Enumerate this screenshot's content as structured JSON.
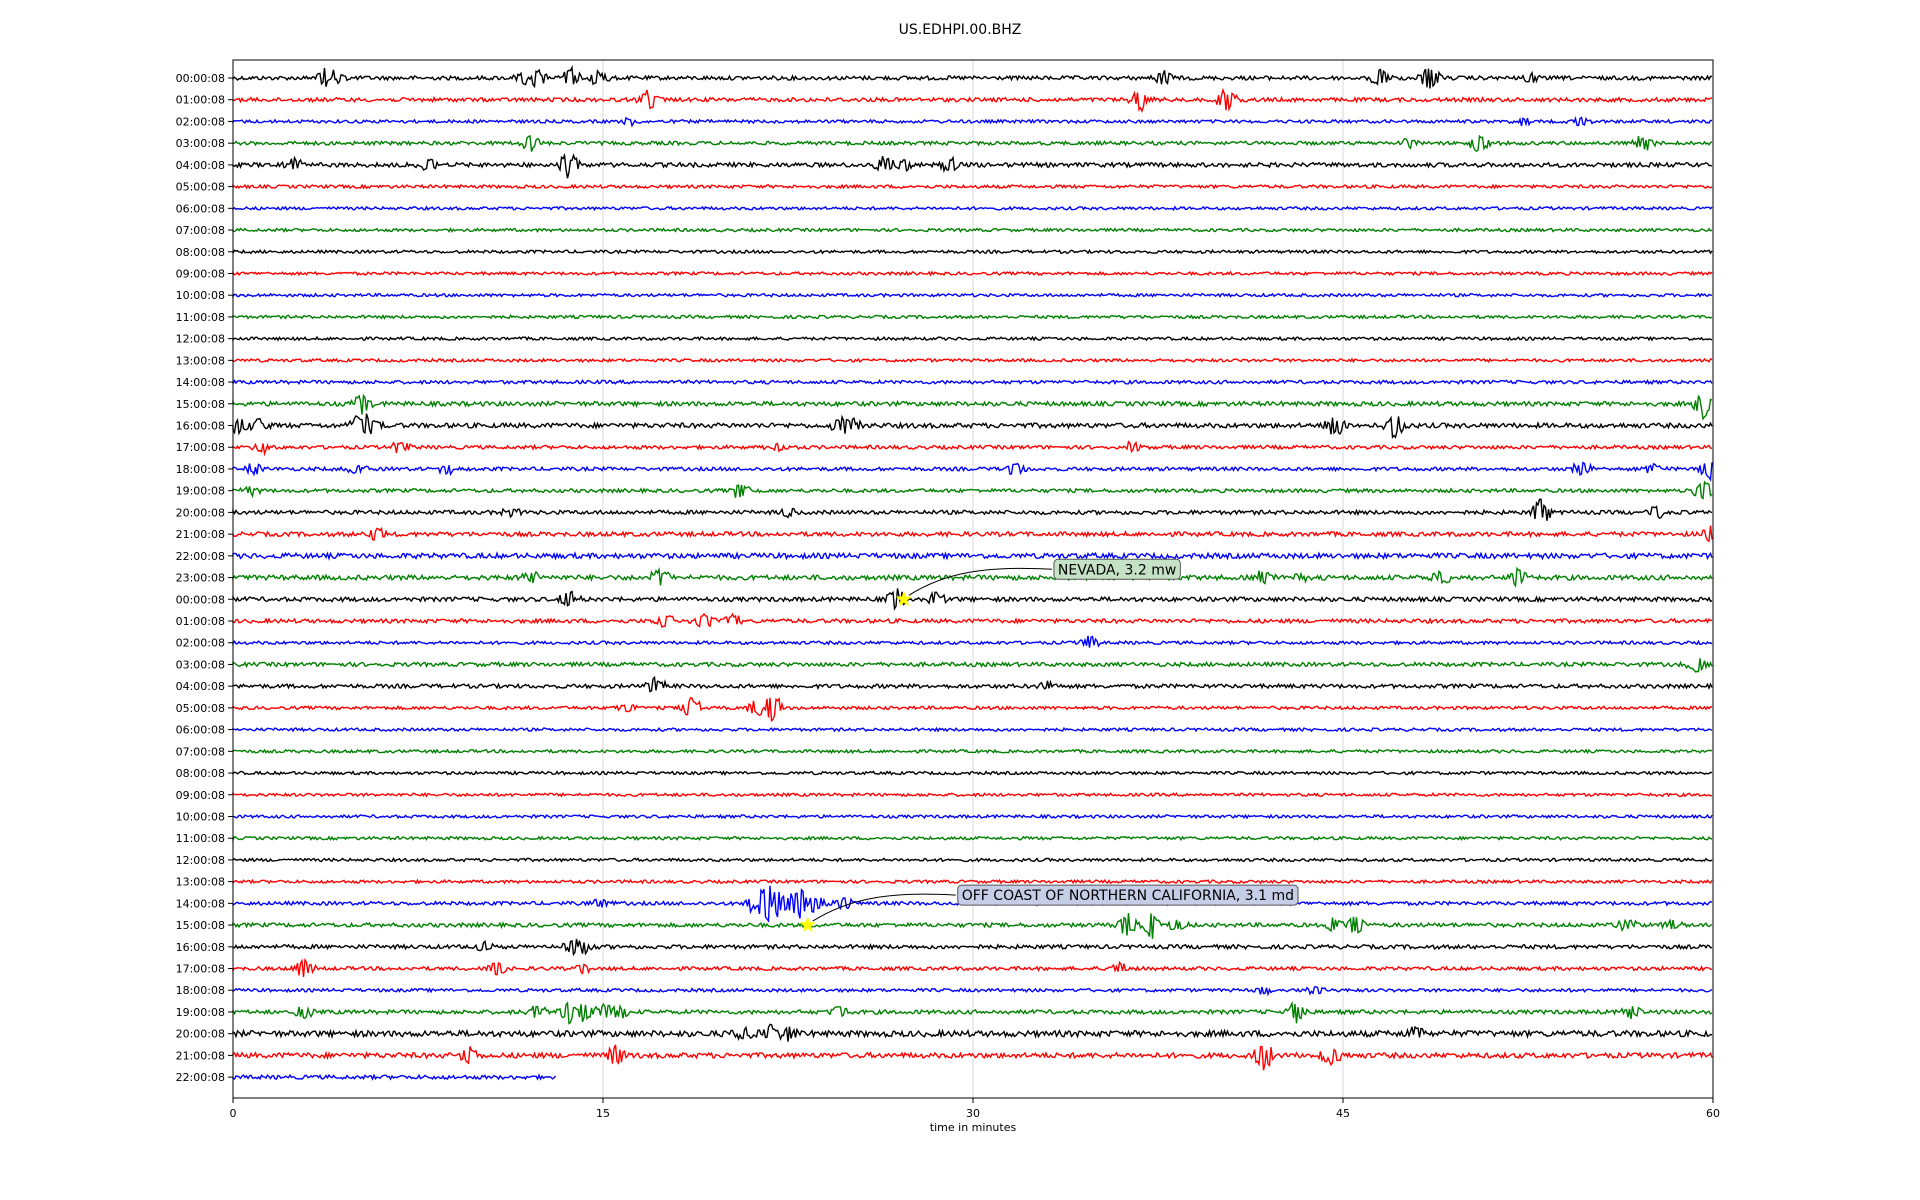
{
  "chart_data": {
    "type": "line",
    "title": "US.EDHPI.00.BHZ",
    "xlabel": "time in minutes",
    "ylabel": "",
    "xlim": [
      0,
      60
    ],
    "x_ticks": [
      "0",
      "15",
      "30",
      "45",
      "60"
    ],
    "grid": "vertical",
    "line_colors": [
      "#000000",
      "#ff0000",
      "#0000ff",
      "#008000"
    ],
    "star_color": "#ffff00",
    "trace_labels": [
      "00:00:08",
      "01:00:08",
      "02:00:08",
      "03:00:08",
      "04:00:08",
      "05:00:08",
      "06:00:08",
      "07:00:08",
      "08:00:08",
      "09:00:08",
      "10:00:08",
      "11:00:08",
      "12:00:08",
      "13:00:08",
      "14:00:08",
      "15:00:08",
      "16:00:08",
      "17:00:08",
      "18:00:08",
      "19:00:08",
      "20:00:08",
      "21:00:08",
      "22:00:08",
      "23:00:08",
      "00:00:08",
      "01:00:08",
      "02:00:08",
      "03:00:08",
      "04:00:08",
      "05:00:08",
      "06:00:08",
      "07:00:08",
      "08:00:08",
      "09:00:08",
      "10:00:08",
      "11:00:08",
      "12:00:08",
      "13:00:08",
      "14:00:08",
      "15:00:08",
      "16:00:08",
      "17:00:08",
      "18:00:08",
      "19:00:08",
      "20:00:08",
      "21:00:08",
      "22:00:08"
    ],
    "last_trace_end_minute": 13.1,
    "noise": [
      2.0,
      2.0,
      1.6,
      1.8,
      2.2,
      1.6,
      1.5,
      1.5,
      1.5,
      1.5,
      1.5,
      1.5,
      1.5,
      1.5,
      1.7,
      2.2,
      2.4,
      1.8,
      1.8,
      1.8,
      2.0,
      2.2,
      2.6,
      2.4,
      2.2,
      2.0,
      1.6,
      2.0,
      2.0,
      1.6,
      1.5,
      1.5,
      1.5,
      1.5,
      1.5,
      1.5,
      1.5,
      1.5,
      1.8,
      2.0,
      2.0,
      1.8,
      1.6,
      2.0,
      3.0,
      2.6,
      2.0
    ],
    "events": [
      {
        "trace": 0,
        "minute": 3.8,
        "amp": 9
      },
      {
        "trace": 0,
        "minute": 4.1,
        "amp": 8
      },
      {
        "trace": 0,
        "minute": 11.8,
        "amp": 7
      },
      {
        "trace": 0,
        "minute": 12.3,
        "amp": 8
      },
      {
        "trace": 0,
        "minute": 13.7,
        "amp": 10
      },
      {
        "trace": 0,
        "minute": 14.8,
        "amp": 8
      },
      {
        "trace": 0,
        "minute": 37.7,
        "amp": 8
      },
      {
        "trace": 0,
        "minute": 46.5,
        "amp": 11
      },
      {
        "trace": 0,
        "minute": 48.5,
        "amp": 13
      },
      {
        "trace": 0,
        "minute": 52.6,
        "amp": 6
      },
      {
        "trace": 1,
        "minute": 16.6,
        "amp": 8
      },
      {
        "trace": 1,
        "minute": 17.0,
        "amp": 7
      },
      {
        "trace": 1,
        "minute": 36.8,
        "amp": 11
      },
      {
        "trace": 1,
        "minute": 40.3,
        "amp": 13
      },
      {
        "trace": 2,
        "minute": 16.1,
        "amp": 4
      },
      {
        "trace": 2,
        "minute": 52.3,
        "amp": 4
      },
      {
        "trace": 2,
        "minute": 54.6,
        "amp": 5
      },
      {
        "trace": 3,
        "minute": 12.1,
        "amp": 10
      },
      {
        "trace": 3,
        "minute": 47.7,
        "amp": 6
      },
      {
        "trace": 3,
        "minute": 50.5,
        "amp": 10
      },
      {
        "trace": 3,
        "minute": 57.2,
        "amp": 9
      },
      {
        "trace": 4,
        "minute": 2.5,
        "amp": 7
      },
      {
        "trace": 4,
        "minute": 7.9,
        "amp": 7
      },
      {
        "trace": 4,
        "minute": 13.6,
        "amp": 14
      },
      {
        "trace": 4,
        "minute": 26.4,
        "amp": 9
      },
      {
        "trace": 4,
        "minute": 27.3,
        "amp": 7
      },
      {
        "trace": 4,
        "minute": 29.1,
        "amp": 8
      },
      {
        "trace": 15,
        "minute": 5.3,
        "amp": 11
      },
      {
        "trace": 15,
        "minute": 59.6,
        "amp": 14
      },
      {
        "trace": 16,
        "minute": 0.2,
        "amp": 9
      },
      {
        "trace": 16,
        "minute": 1.0,
        "amp": 7
      },
      {
        "trace": 16,
        "minute": 5.1,
        "amp": 11
      },
      {
        "trace": 16,
        "minute": 5.6,
        "amp": 8
      },
      {
        "trace": 16,
        "minute": 24.6,
        "amp": 9
      },
      {
        "trace": 16,
        "minute": 25.2,
        "amp": 7
      },
      {
        "trace": 16,
        "minute": 44.7,
        "amp": 13
      },
      {
        "trace": 16,
        "minute": 47.1,
        "amp": 12
      },
      {
        "trace": 17,
        "minute": 1.2,
        "amp": 6
      },
      {
        "trace": 17,
        "minute": 6.8,
        "amp": 7
      },
      {
        "trace": 17,
        "minute": 22.0,
        "amp": 5
      },
      {
        "trace": 17,
        "minute": 36.4,
        "amp": 5
      },
      {
        "trace": 18,
        "minute": 0.8,
        "amp": 6
      },
      {
        "trace": 18,
        "minute": 5.0,
        "amp": 5
      },
      {
        "trace": 18,
        "minute": 8.7,
        "amp": 5
      },
      {
        "trace": 18,
        "minute": 31.7,
        "amp": 7
      },
      {
        "trace": 18,
        "minute": 54.7,
        "amp": 8
      },
      {
        "trace": 18,
        "minute": 57.6,
        "amp": 6
      },
      {
        "trace": 18,
        "minute": 59.9,
        "amp": 14
      },
      {
        "trace": 19,
        "minute": 0.7,
        "amp": 7
      },
      {
        "trace": 19,
        "minute": 20.6,
        "amp": 9
      },
      {
        "trace": 19,
        "minute": 59.6,
        "amp": 12
      },
      {
        "trace": 20,
        "minute": 11.3,
        "amp": 5
      },
      {
        "trace": 20,
        "minute": 22.5,
        "amp": 4
      },
      {
        "trace": 20,
        "minute": 53.0,
        "amp": 14
      },
      {
        "trace": 20,
        "minute": 57.7,
        "amp": 7
      },
      {
        "trace": 21,
        "minute": 5.8,
        "amp": 7
      },
      {
        "trace": 21,
        "minute": 59.9,
        "amp": 10
      },
      {
        "trace": 23,
        "minute": 12.1,
        "amp": 6
      },
      {
        "trace": 23,
        "minute": 17.3,
        "amp": 9
      },
      {
        "trace": 23,
        "minute": 41.8,
        "amp": 8
      },
      {
        "trace": 23,
        "minute": 43.2,
        "amp": 5
      },
      {
        "trace": 23,
        "minute": 49.0,
        "amp": 7
      },
      {
        "trace": 23,
        "minute": 52.1,
        "amp": 9
      },
      {
        "trace": 24,
        "minute": 13.6,
        "amp": 10
      },
      {
        "trace": 24,
        "minute": 26.9,
        "amp": 12
      },
      {
        "trace": 24,
        "minute": 28.5,
        "amp": 9
      },
      {
        "trace": 25,
        "minute": 17.5,
        "amp": 8
      },
      {
        "trace": 25,
        "minute": 19.1,
        "amp": 7
      },
      {
        "trace": 25,
        "minute": 20.3,
        "amp": 8
      },
      {
        "trace": 26,
        "minute": 34.8,
        "amp": 7
      },
      {
        "trace": 27,
        "minute": 59.3,
        "amp": 9
      },
      {
        "trace": 28,
        "minute": 17.1,
        "amp": 10
      },
      {
        "trace": 28,
        "minute": 33.0,
        "amp": 5
      },
      {
        "trace": 29,
        "minute": 15.9,
        "amp": 6
      },
      {
        "trace": 29,
        "minute": 18.6,
        "amp": 11
      },
      {
        "trace": 29,
        "minute": 21.3,
        "amp": 10
      },
      {
        "trace": 29,
        "minute": 21.9,
        "amp": 14
      },
      {
        "trace": 38,
        "minute": 21.1,
        "amp": 9
      },
      {
        "trace": 38,
        "minute": 21.6,
        "amp": 14
      },
      {
        "trace": 38,
        "minute": 22.0,
        "amp": 18
      },
      {
        "trace": 38,
        "minute": 22.9,
        "amp": 20
      },
      {
        "trace": 38,
        "minute": 23.6,
        "amp": 9
      },
      {
        "trace": 38,
        "minute": 24.8,
        "amp": 8
      },
      {
        "trace": 38,
        "minute": 14.9,
        "amp": 5
      },
      {
        "trace": 39,
        "minute": 36.3,
        "amp": 12
      },
      {
        "trace": 39,
        "minute": 37.2,
        "amp": 14
      },
      {
        "trace": 39,
        "minute": 38.3,
        "amp": 7
      },
      {
        "trace": 39,
        "minute": 44.6,
        "amp": 7
      },
      {
        "trace": 39,
        "minute": 45.5,
        "amp": 10
      },
      {
        "trace": 39,
        "minute": 56.5,
        "amp": 6
      },
      {
        "trace": 39,
        "minute": 58.3,
        "amp": 5
      },
      {
        "trace": 40,
        "minute": 10.3,
        "amp": 5
      },
      {
        "trace": 40,
        "minute": 13.8,
        "amp": 7
      },
      {
        "trace": 40,
        "minute": 14.3,
        "amp": 6
      },
      {
        "trace": 41,
        "minute": 2.9,
        "amp": 10
      },
      {
        "trace": 41,
        "minute": 10.7,
        "amp": 8
      },
      {
        "trace": 41,
        "minute": 14.3,
        "amp": 5
      },
      {
        "trace": 41,
        "minute": 36.0,
        "amp": 7
      },
      {
        "trace": 42,
        "minute": 41.7,
        "amp": 5
      },
      {
        "trace": 42,
        "minute": 43.9,
        "amp": 5
      },
      {
        "trace": 43,
        "minute": 2.9,
        "amp": 7
      },
      {
        "trace": 43,
        "minute": 12.3,
        "amp": 7
      },
      {
        "trace": 43,
        "minute": 13.6,
        "amp": 12
      },
      {
        "trace": 43,
        "minute": 14.3,
        "amp": 11
      },
      {
        "trace": 43,
        "minute": 15.1,
        "amp": 10
      },
      {
        "trace": 43,
        "minute": 15.7,
        "amp": 8
      },
      {
        "trace": 43,
        "minute": 24.5,
        "amp": 8
      },
      {
        "trace": 43,
        "minute": 43.1,
        "amp": 10
      },
      {
        "trace": 43,
        "minute": 56.7,
        "amp": 7
      },
      {
        "trace": 44,
        "minute": 20.7,
        "amp": 8
      },
      {
        "trace": 44,
        "minute": 21.8,
        "amp": 9
      },
      {
        "trace": 44,
        "minute": 22.5,
        "amp": 8
      },
      {
        "trace": 44,
        "minute": 48.0,
        "amp": 7
      },
      {
        "trace": 45,
        "minute": 9.5,
        "amp": 10
      },
      {
        "trace": 45,
        "minute": 15.5,
        "amp": 12
      },
      {
        "trace": 45,
        "minute": 41.8,
        "amp": 16
      },
      {
        "trace": 45,
        "minute": 44.5,
        "amp": 11
      }
    ],
    "annotations": [
      {
        "text": "NEVADA, 3.2 mw",
        "trace": 24,
        "minute": 27.2,
        "box_color": "#c6e2c6"
      },
      {
        "text": "OFF COAST OF NORTHERN CALIFORNIA, 3.1 md",
        "trace": 39,
        "minute": 23.3,
        "box_color": "#c6cde6"
      }
    ]
  }
}
